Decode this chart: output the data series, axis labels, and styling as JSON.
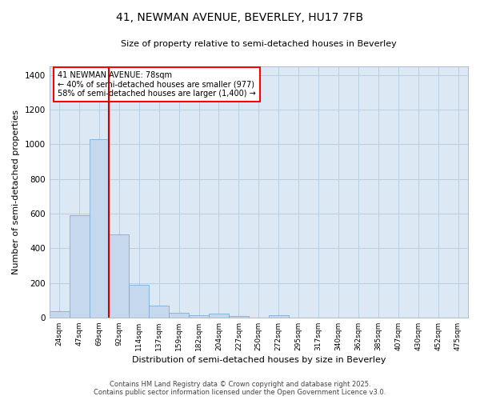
{
  "title_line1": "41, NEWMAN AVENUE, BEVERLEY, HU17 7FB",
  "title_line2": "Size of property relative to semi-detached houses in Beverley",
  "xlabel": "Distribution of semi-detached houses by size in Beverley",
  "ylabel": "Number of semi-detached properties",
  "categories": [
    "24sqm",
    "47sqm",
    "69sqm",
    "92sqm",
    "114sqm",
    "137sqm",
    "159sqm",
    "182sqm",
    "204sqm",
    "227sqm",
    "250sqm",
    "272sqm",
    "295sqm",
    "317sqm",
    "340sqm",
    "362sqm",
    "385sqm",
    "407sqm",
    "430sqm",
    "452sqm",
    "475sqm"
  ],
  "values": [
    35,
    590,
    1030,
    480,
    190,
    70,
    25,
    15,
    20,
    10,
    0,
    15,
    0,
    0,
    0,
    0,
    0,
    0,
    0,
    0,
    0
  ],
  "bar_color": "#c5d8ed",
  "bar_edge_color": "#7aafd4",
  "vline_x_index": 2,
  "vline_color": "#cc0000",
  "annotation_box_text": "41 NEWMAN AVENUE: 78sqm\n← 40% of semi-detached houses are smaller (977)\n58% of semi-detached houses are larger (1,400) →",
  "ylim": [
    0,
    1450
  ],
  "yticks": [
    0,
    200,
    400,
    600,
    800,
    1000,
    1200,
    1400
  ],
  "background_color": "#ffffff",
  "plot_bg_color": "#dce9f5",
  "grid_color": "#b8cfe0",
  "footer_line1": "Contains HM Land Registry data © Crown copyright and database right 2025.",
  "footer_line2": "Contains public sector information licensed under the Open Government Licence v3.0."
}
